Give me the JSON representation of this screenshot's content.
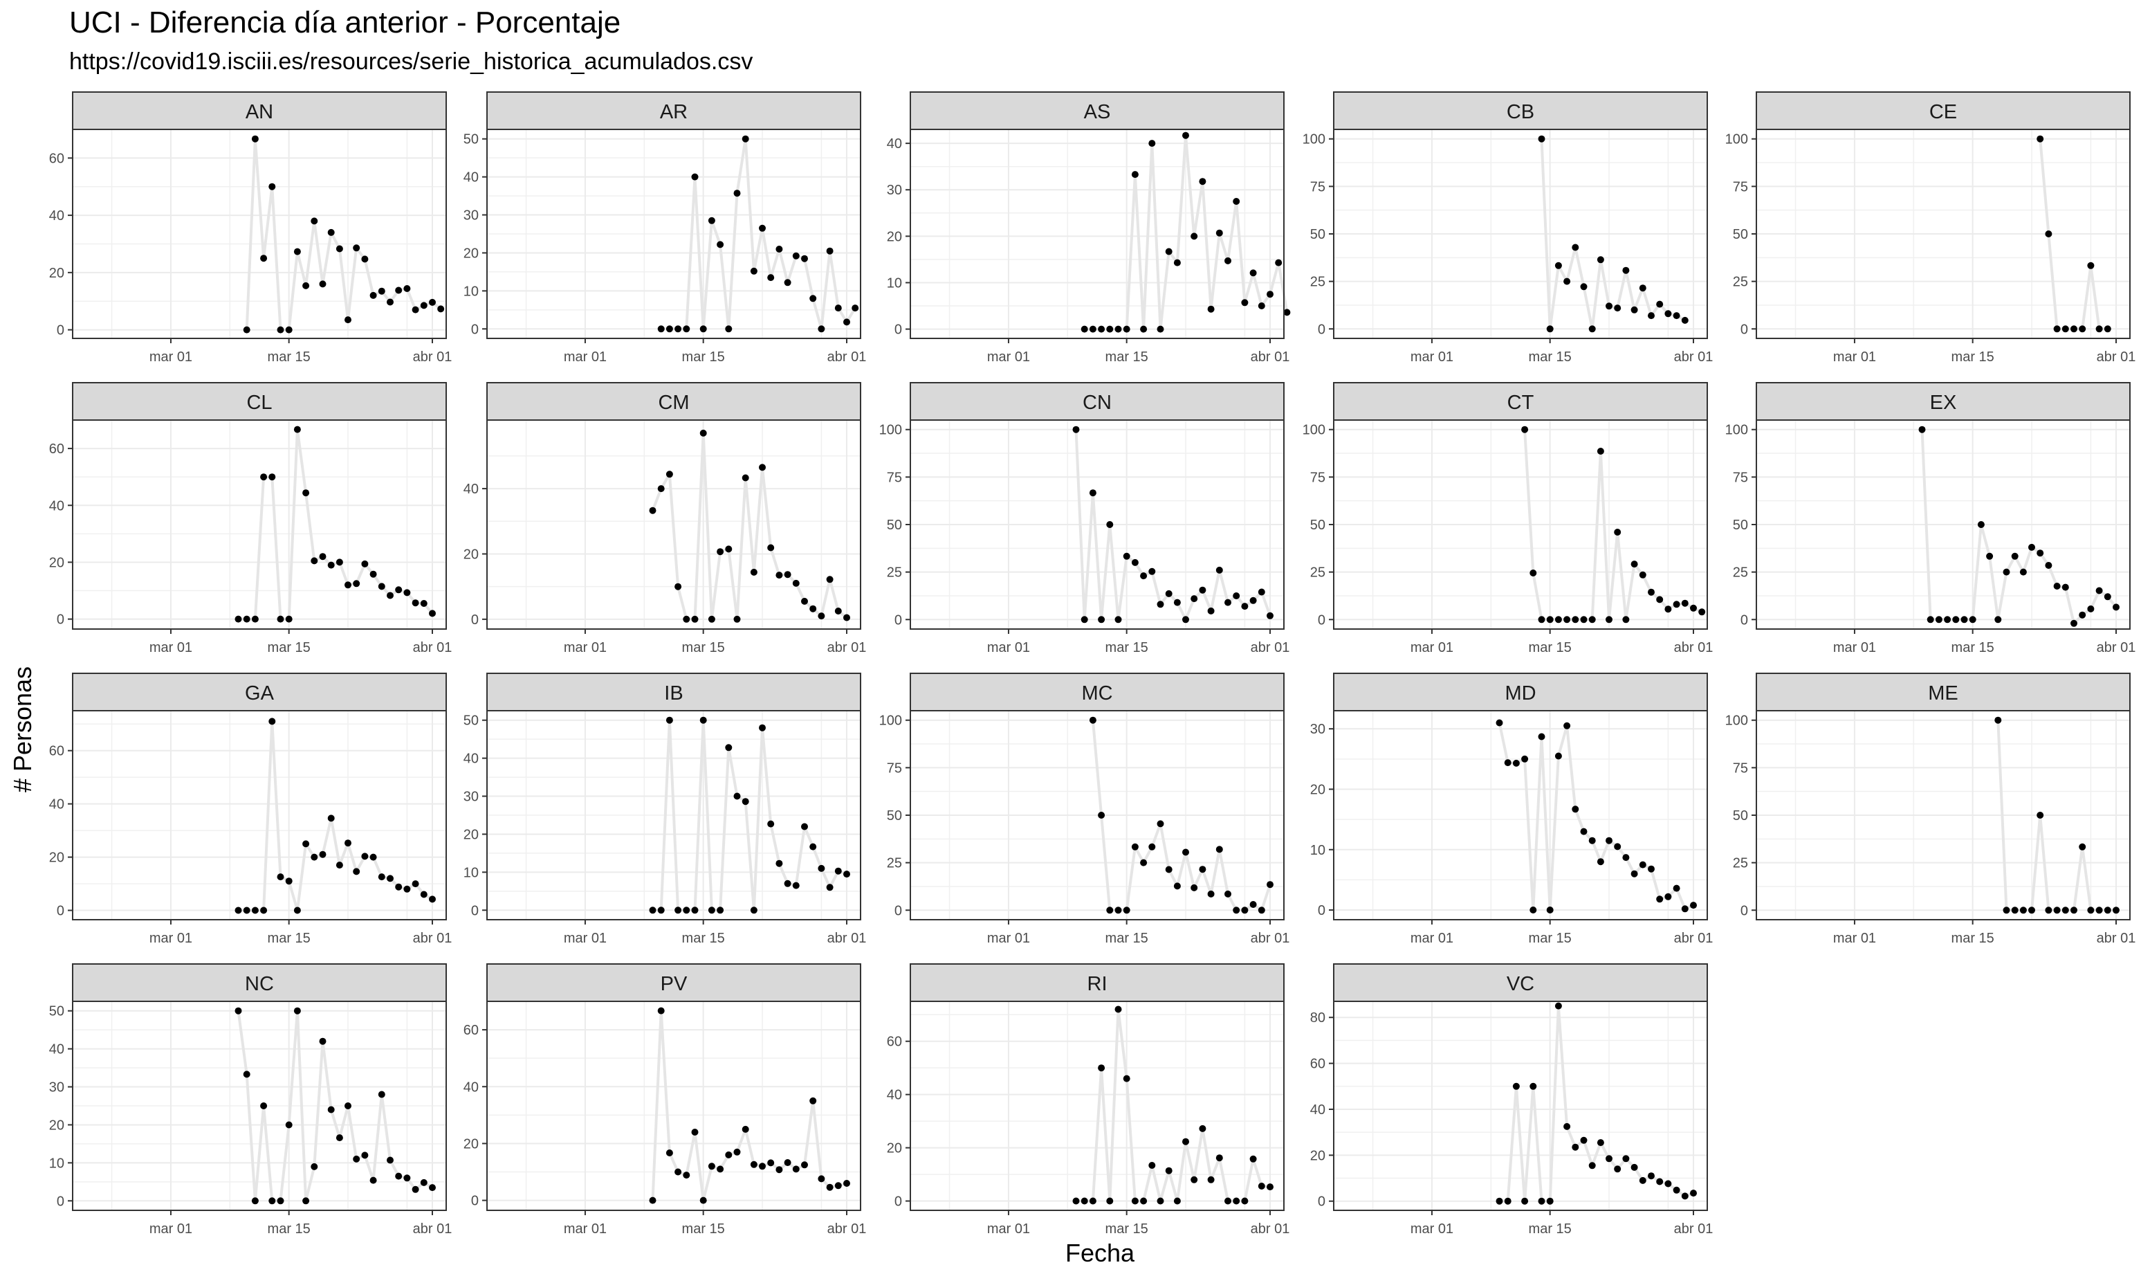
{
  "chart_data": {
    "type": "line",
    "title": "UCI - Diferencia día anterior - Porcentaje",
    "subtitle": "https://covid19.isciii.es/resources/serie_historica_acumulados.csv",
    "xlabel": "Fecha",
    "ylabel": "# Personas",
    "facet_by": "region",
    "x_range": [
      "2020-02-20",
      "2020-04-01"
    ],
    "x_ticks": [
      {
        "date": "2020-03-01",
        "label": "mar 01"
      },
      {
        "date": "2020-03-15",
        "label": "mar 15"
      },
      {
        "date": "2020-04-01",
        "label": "abr 01"
      }
    ],
    "line_color": "#e5e5e5",
    "point_color": "#000000",
    "strip_color": "#d9d9d9",
    "grid": true,
    "panels": [
      {
        "name": "AN",
        "yticks": [
          0,
          20,
          40,
          60
        ],
        "ylim": [
          -3,
          70
        ],
        "start": "2020-03-10",
        "values": [
          0,
          66.7,
          25,
          50,
          0,
          0,
          27.3,
          15.4,
          38,
          16,
          34,
          28.3,
          3.5,
          28.6,
          24.7,
          12,
          13.5,
          9.7,
          13.8,
          14.4,
          7,
          8.5,
          9.6,
          7.3
        ]
      },
      {
        "name": "AR",
        "yticks": [
          0,
          10,
          20,
          30,
          40,
          50
        ],
        "ylim": [
          -2.5,
          52.5
        ],
        "start": "2020-03-10",
        "values": [
          0,
          0,
          0,
          0,
          40,
          0,
          28.5,
          22.2,
          0,
          35.7,
          50,
          15.2,
          26.5,
          13.5,
          21,
          12.2,
          19.2,
          18.5,
          8,
          0,
          20.5,
          5.5,
          1.8,
          5.5
        ]
      },
      {
        "name": "AS",
        "yticks": [
          0,
          10,
          20,
          30,
          40
        ],
        "ylim": [
          -2,
          43
        ],
        "start": "2020-03-10",
        "values": [
          0,
          0,
          0,
          0,
          0,
          0,
          33.3,
          0,
          40,
          0,
          16.7,
          14.3,
          41.7,
          20,
          31.8,
          4.3,
          20.7,
          14.7,
          27.5,
          5.7,
          12.1,
          5,
          7.5,
          14.3,
          3.6
        ]
      },
      {
        "name": "CB",
        "yticks": [
          0,
          25,
          50,
          75,
          100
        ],
        "ylim": [
          -5,
          105
        ],
        "start": "2020-03-14",
        "values": [
          100,
          0,
          33.3,
          25,
          42.9,
          22.2,
          0,
          36.4,
          12,
          11,
          30.8,
          10,
          21.5,
          7,
          13,
          8,
          7,
          4.5
        ]
      },
      {
        "name": "CE",
        "yticks": [
          0,
          25,
          50,
          75,
          100
        ],
        "ylim": [
          -5,
          105
        ],
        "start": "2020-03-23",
        "values": [
          100,
          50,
          0,
          0,
          0,
          0,
          33.3,
          0,
          0
        ]
      },
      {
        "name": "CL",
        "yticks": [
          0,
          20,
          40,
          60
        ],
        "ylim": [
          -3.5,
          70
        ],
        "start": "2020-03-09",
        "values": [
          0,
          0,
          0,
          50,
          50,
          0,
          0,
          66.7,
          44.4,
          20.5,
          22,
          19,
          20,
          12,
          12.5,
          19.4,
          15.8,
          11.5,
          8.3,
          10.3,
          9.3,
          5.7,
          5.5,
          2
        ]
      },
      {
        "name": "CM",
        "yticks": [
          0,
          20,
          40
        ],
        "ylim": [
          -3,
          61
        ],
        "start": "2020-03-09",
        "values": [
          33.3,
          40,
          44.4,
          10,
          0,
          0,
          57,
          0,
          20.7,
          21.5,
          0,
          43.3,
          14.4,
          46.5,
          21.9,
          13.5,
          13.7,
          11,
          5.5,
          3.2,
          1,
          12.2,
          2.5,
          0.5
        ]
      },
      {
        "name": "CN",
        "yticks": [
          0,
          25,
          50,
          75,
          100
        ],
        "ylim": [
          -5,
          105
        ],
        "start": "2020-03-09",
        "values": [
          100,
          0,
          66.7,
          0,
          50,
          0,
          33.3,
          30,
          23,
          25.3,
          8,
          13.6,
          9,
          0,
          11,
          15.5,
          4.5,
          26,
          9,
          12.5,
          7,
          10,
          14.5,
          2
        ]
      },
      {
        "name": "CT",
        "yticks": [
          0,
          25,
          50,
          75,
          100
        ],
        "ylim": [
          -5,
          105
        ],
        "start": "2020-03-12",
        "values": [
          100,
          24.5,
          0,
          0,
          0,
          0,
          0,
          0,
          0,
          88.6,
          0,
          46,
          0,
          29.2,
          23.5,
          14.4,
          10.5,
          5.5,
          8,
          8.6,
          6,
          4
        ]
      },
      {
        "name": "EX",
        "yticks": [
          0,
          25,
          50,
          75,
          100
        ],
        "ylim": [
          -5,
          105
        ],
        "start": "2020-03-09",
        "values": [
          100,
          0,
          0,
          0,
          0,
          0,
          0,
          50,
          33.3,
          0,
          25,
          33.3,
          25,
          38,
          35,
          28.5,
          17.6,
          17,
          -2,
          2.4,
          5.6,
          15.2,
          12,
          6.5
        ]
      },
      {
        "name": "GA",
        "yticks": [
          0,
          20,
          40,
          60
        ],
        "ylim": [
          -3.5,
          75
        ],
        "start": "2020-03-09",
        "values": [
          0,
          0,
          0,
          0,
          71,
          12.6,
          11,
          0,
          25,
          20,
          21,
          34.6,
          17,
          25.3,
          14.6,
          20.3,
          20,
          12.6,
          12,
          8.8,
          8,
          10,
          6,
          4.2
        ]
      },
      {
        "name": "IB",
        "yticks": [
          0,
          10,
          20,
          30,
          40,
          50
        ],
        "ylim": [
          -2.5,
          52.5
        ],
        "start": "2020-03-09",
        "values": [
          0,
          0,
          50,
          0,
          0,
          0,
          50,
          0,
          0,
          42.8,
          30,
          28.6,
          0,
          48,
          22.7,
          12.3,
          7,
          6.5,
          22,
          16.7,
          11,
          6,
          10.3,
          9.5
        ]
      },
      {
        "name": "MC",
        "yticks": [
          0,
          25,
          50,
          75,
          100
        ],
        "ylim": [
          -5,
          105
        ],
        "start": "2020-03-11",
        "values": [
          100,
          50,
          0,
          0,
          0,
          33.3,
          25,
          33.3,
          45.5,
          21.4,
          12.7,
          30.5,
          11.8,
          21.5,
          8.5,
          32,
          8.5,
          0,
          0,
          3,
          0,
          13.5
        ]
      },
      {
        "name": "MD",
        "yticks": [
          0,
          10,
          20,
          30
        ],
        "ylim": [
          -1.6,
          33
        ],
        "start": "2020-03-09",
        "values": [
          31,
          24.4,
          24.3,
          25,
          0,
          28.7,
          0,
          25.5,
          30.5,
          16.7,
          13,
          11.5,
          8,
          11.5,
          10.5,
          8.7,
          6,
          7.5,
          6.8,
          1.8,
          2.2,
          3.6,
          0.2,
          0.8
        ]
      },
      {
        "name": "ME",
        "yticks": [
          0,
          25,
          50,
          75,
          100
        ],
        "ylim": [
          -5,
          105
        ],
        "start": "2020-03-18",
        "values": [
          100,
          0,
          0,
          0,
          0,
          50,
          0,
          0,
          0,
          0,
          33.3,
          0,
          0,
          0,
          0
        ]
      },
      {
        "name": "NC",
        "yticks": [
          0,
          10,
          20,
          30,
          40,
          50
        ],
        "ylim": [
          -2.5,
          52.5
        ],
        "start": "2020-03-09",
        "values": [
          50,
          33.3,
          0,
          25,
          0,
          0,
          20,
          50,
          0,
          9,
          42,
          24,
          16.6,
          25,
          11,
          12,
          5.4,
          28,
          10.7,
          6.5,
          6,
          3,
          4.8,
          3.5
        ]
      },
      {
        "name": "PV",
        "yticks": [
          0,
          20,
          40,
          60
        ],
        "ylim": [
          -3.5,
          70
        ],
        "start": "2020-03-09",
        "values": [
          0,
          66.7,
          16.7,
          10,
          8.9,
          24,
          0,
          12,
          11,
          16,
          17,
          25,
          12.6,
          12,
          13.2,
          10.8,
          13.3,
          11,
          12.5,
          35,
          7.6,
          4.6,
          5.2,
          6
        ]
      },
      {
        "name": "RI",
        "yticks": [
          0,
          20,
          40,
          60
        ],
        "ylim": [
          -3.5,
          75
        ],
        "start": "2020-03-09",
        "values": [
          0,
          0,
          0,
          50,
          0,
          72,
          46,
          0,
          0,
          13.4,
          0,
          11.4,
          0,
          22.3,
          8,
          27.2,
          8,
          16.2,
          0,
          0,
          0,
          15.8,
          5.6,
          5.3
        ]
      },
      {
        "name": "VC",
        "yticks": [
          0,
          20,
          40,
          60,
          80
        ],
        "ylim": [
          -4,
          87
        ],
        "start": "2020-03-09",
        "values": [
          0,
          0,
          50,
          0,
          50,
          0,
          0,
          85,
          32.5,
          23.5,
          26.5,
          15.5,
          25.5,
          18.5,
          14,
          18.5,
          14.7,
          9,
          11,
          8.5,
          7.6,
          4.8,
          2.2,
          3.5
        ]
      }
    ]
  }
}
